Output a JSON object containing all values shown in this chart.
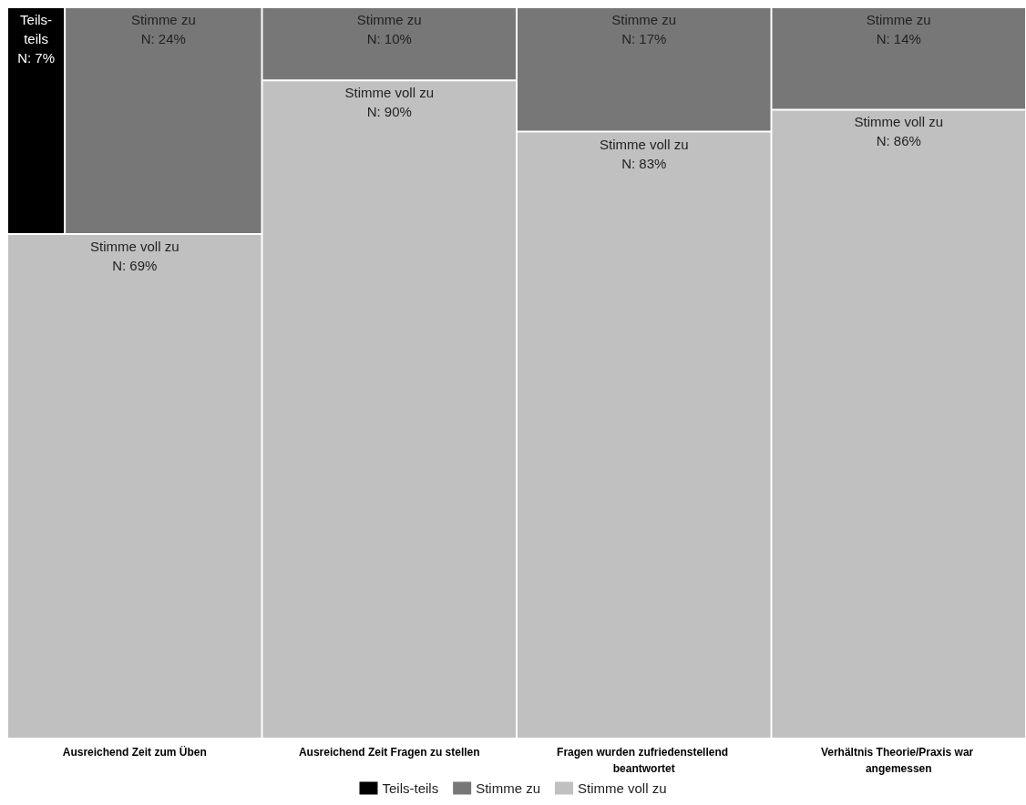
{
  "chart_data": {
    "type": "other",
    "categories": [
      "Ausreichend Zeit zum Üben",
      "Ausreichend Zeit Fragen zu stellen",
      "Fragen wurden zufriedenstellend beantwortet",
      "Verhältnis Theorie/Praxis war angemessen"
    ],
    "series": [
      {
        "name": "Teils-teils",
        "color": "#000000",
        "values": [
          7,
          null,
          null,
          null
        ],
        "value_labels": [
          "N: 7%",
          null,
          null,
          null
        ]
      },
      {
        "name": "Stimme zu",
        "color": "#777777",
        "values": [
          24,
          10,
          17,
          14
        ],
        "value_labels": [
          "N: 24%",
          "N: 10%",
          "N: 17%",
          "N: 14%"
        ]
      },
      {
        "name": "Stimme voll zu",
        "color": "#c0c0c0",
        "values": [
          69,
          90,
          83,
          86
        ],
        "value_labels": [
          "N: 69%",
          "N: 90%",
          "N: 83%",
          "N: 86%"
        ]
      }
    ],
    "legend": "bottom"
  }
}
